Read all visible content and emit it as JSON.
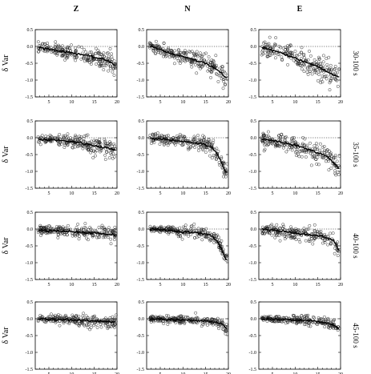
{
  "chart_data": {
    "type": "scatter",
    "layout": "grid",
    "columns": [
      "Z",
      "N",
      "E"
    ],
    "rows": [
      "30-100 s",
      "35-100 s",
      "40-100 s",
      "45-100 s"
    ],
    "ylabel": "δ Var",
    "xlim": [
      2,
      20
    ],
    "ylim": [
      -1.5,
      0.5
    ],
    "x_ticks": [
      5,
      10,
      15,
      20
    ],
    "y_ticks": [
      "0.5",
      "0.0",
      "-0.5",
      "-1.0",
      "-1.5"
    ],
    "y_tick_values": [
      0.5,
      0.0,
      -0.5,
      -1.0,
      -1.5
    ],
    "reference_line": 0.0,
    "marker": "open-circle",
    "series": [
      {
        "col": 0,
        "row": 0,
        "x": [
          3,
          6,
          9,
          12,
          15,
          18,
          19.5
        ],
        "y": [
          -0.03,
          -0.1,
          -0.17,
          -0.23,
          -0.32,
          -0.42,
          -0.55
        ],
        "spread": 0.2
      },
      {
        "col": 1,
        "row": 0,
        "x": [
          3,
          6,
          9,
          12,
          15,
          17,
          18.5,
          19.5
        ],
        "y": [
          0.0,
          -0.15,
          -0.28,
          -0.38,
          -0.5,
          -0.65,
          -0.8,
          -0.95
        ],
        "spread": 0.22
      },
      {
        "col": 2,
        "row": 0,
        "x": [
          3,
          6,
          9,
          12,
          15,
          17,
          18.5,
          19.5
        ],
        "y": [
          -0.05,
          -0.15,
          -0.3,
          -0.45,
          -0.6,
          -0.75,
          -0.85,
          -0.9
        ],
        "spread": 0.28
      },
      {
        "col": 0,
        "row": 1,
        "x": [
          3,
          6,
          9,
          12,
          15,
          18,
          19.5
        ],
        "y": [
          -0.05,
          -0.07,
          -0.1,
          -0.15,
          -0.25,
          -0.3,
          -0.35
        ],
        "spread": 0.2
      },
      {
        "col": 1,
        "row": 1,
        "x": [
          3,
          6,
          9,
          12,
          15,
          16.5,
          17.5,
          18.5,
          19.5
        ],
        "y": [
          0.0,
          -0.05,
          -0.1,
          -0.15,
          -0.2,
          -0.3,
          -0.45,
          -0.75,
          -1.05
        ],
        "spread": 0.18
      },
      {
        "col": 2,
        "row": 1,
        "x": [
          3,
          6,
          9,
          12,
          15,
          17,
          18.5,
          19.5
        ],
        "y": [
          -0.05,
          -0.1,
          -0.2,
          -0.3,
          -0.45,
          -0.55,
          -0.75,
          -0.9
        ],
        "spread": 0.25
      },
      {
        "col": 0,
        "row": 2,
        "x": [
          3,
          6,
          9,
          12,
          15,
          18,
          19.5
        ],
        "y": [
          -0.02,
          -0.05,
          -0.07,
          -0.1,
          -0.12,
          -0.15,
          -0.18
        ],
        "spread": 0.17
      },
      {
        "col": 1,
        "row": 2,
        "x": [
          3,
          6,
          9,
          12,
          15,
          16.5,
          17.5,
          18.5,
          19.5
        ],
        "y": [
          0.0,
          -0.03,
          -0.07,
          -0.1,
          -0.15,
          -0.22,
          -0.35,
          -0.6,
          -0.9
        ],
        "spread": 0.14
      },
      {
        "col": 2,
        "row": 2,
        "x": [
          3,
          6,
          9,
          12,
          15,
          17,
          18.5,
          19.5
        ],
        "y": [
          0.0,
          -0.05,
          -0.1,
          -0.15,
          -0.2,
          -0.25,
          -0.35,
          -0.6
        ],
        "spread": 0.18
      },
      {
        "col": 0,
        "row": 3,
        "x": [
          3,
          6,
          9,
          12,
          15,
          18,
          19.5
        ],
        "y": [
          0.0,
          -0.02,
          -0.03,
          -0.05,
          -0.07,
          -0.08,
          -0.1
        ],
        "spread": 0.14
      },
      {
        "col": 1,
        "row": 3,
        "x": [
          3,
          6,
          9,
          12,
          15,
          17,
          18.5,
          19.5
        ],
        "y": [
          0.0,
          -0.02,
          -0.03,
          -0.05,
          -0.07,
          -0.1,
          -0.15,
          -0.3
        ],
        "spread": 0.11
      },
      {
        "col": 2,
        "row": 3,
        "x": [
          3,
          6,
          9,
          12,
          15,
          17,
          18.5,
          19.5
        ],
        "y": [
          0.0,
          -0.02,
          -0.03,
          -0.05,
          -0.08,
          -0.12,
          -0.18,
          -0.3
        ],
        "spread": 0.11
      }
    ]
  }
}
